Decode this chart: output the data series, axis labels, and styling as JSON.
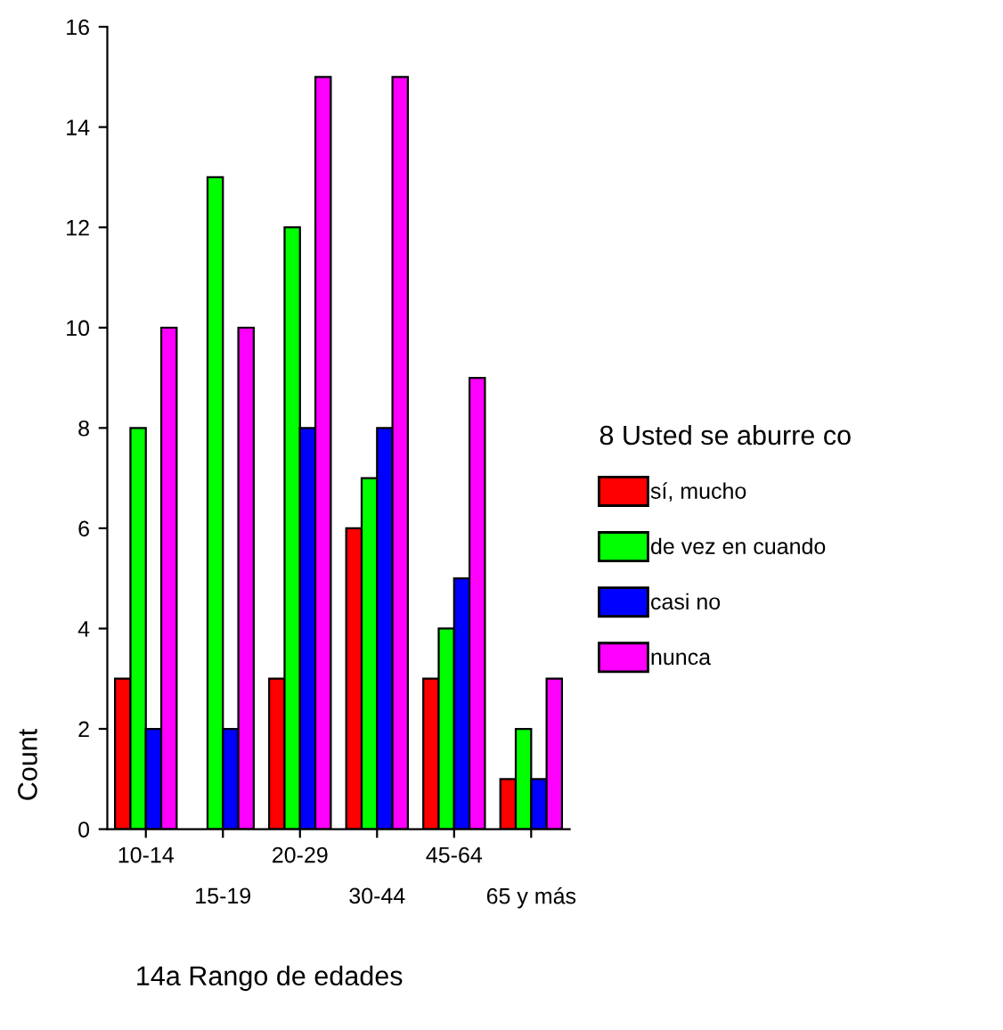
{
  "chart_data": {
    "type": "bar",
    "xlabel": "14a Rango de edades",
    "ylabel": "Count",
    "legend_title": "8 Usted se aburre co",
    "categories": [
      "10-14",
      "15-19",
      "20-29",
      "30-44",
      "45-64",
      "65 y más"
    ],
    "series": [
      {
        "name": "sí, mucho",
        "color": "#ff0000",
        "values": [
          3,
          null,
          3,
          6,
          3,
          1
        ]
      },
      {
        "name": "de vez en cuando",
        "color": "#00ff00",
        "values": [
          8,
          13,
          12,
          7,
          4,
          2
        ]
      },
      {
        "name": "casi no",
        "color": "#0000ff",
        "values": [
          2,
          2,
          8,
          8,
          5,
          1
        ]
      },
      {
        "name": "nunca",
        "color": "#ff00ff",
        "values": [
          10,
          10,
          15,
          15,
          9,
          3
        ]
      }
    ],
    "ylim": [
      0,
      16
    ],
    "yticks": [
      0,
      2,
      4,
      6,
      8,
      10,
      12,
      14,
      16
    ],
    "grid": false,
    "legend": "right"
  }
}
